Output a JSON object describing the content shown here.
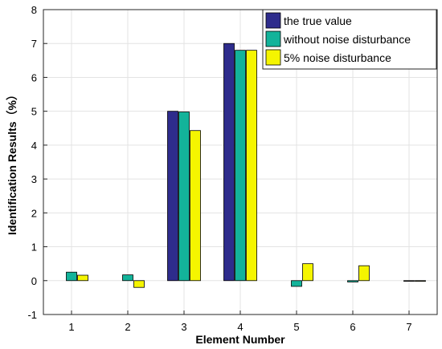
{
  "chart_data": {
    "type": "bar",
    "title": "",
    "xlabel": "Element Number",
    "ylabel": "Identification Results（%）",
    "categories": [
      "1",
      "2",
      "3",
      "4",
      "5",
      "6",
      "7"
    ],
    "ylim": [
      -1,
      8
    ],
    "yticks": [
      -1,
      0,
      1,
      2,
      3,
      4,
      5,
      6,
      7,
      8
    ],
    "grid": true,
    "legend_position": "top-right",
    "series": [
      {
        "name": "the true value",
        "color": "#2e2c8c",
        "values": [
          0,
          0,
          5.0,
          7.0,
          0,
          0,
          0
        ]
      },
      {
        "name": "without noise disturbance",
        "color": "#13b39a",
        "values": [
          0.25,
          0.17,
          4.98,
          6.8,
          -0.17,
          -0.04,
          -0.01
        ]
      },
      {
        "name": "5% noise disturbance",
        "color": "#f5f500",
        "values": [
          0.16,
          -0.2,
          4.43,
          6.8,
          0.5,
          0.44,
          -0.02
        ]
      }
    ]
  }
}
